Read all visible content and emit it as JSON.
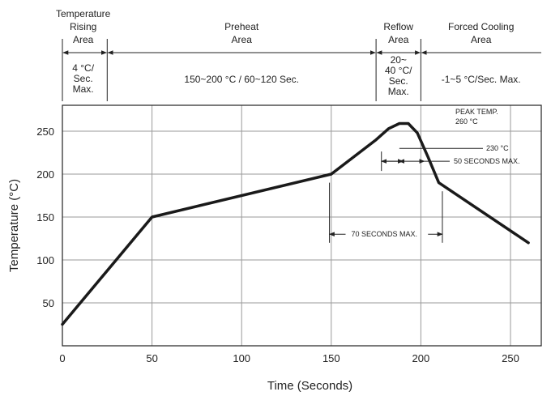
{
  "header": {
    "areas": [
      {
        "name_lines": [
          "Temperature",
          "Rising",
          "Area"
        ],
        "desc_lines": [
          "4 °C/",
          "Sec.",
          "Max."
        ]
      },
      {
        "name_lines": [
          "Preheat",
          "Area"
        ],
        "desc_lines": [
          "150~200 °C / 60~120 Sec."
        ]
      },
      {
        "name_lines": [
          "Reflow",
          "Area"
        ],
        "desc_lines": [
          "20~",
          "40 °C/",
          "Sec.",
          "Max."
        ]
      },
      {
        "name_lines": [
          "Forced Cooling",
          "Area"
        ],
        "desc_lines": [
          "-1~5 °C/Sec. Max."
        ]
      }
    ]
  },
  "chart_data": {
    "type": "line",
    "xlabel": "Time (Seconds)",
    "ylabel": "Temperature (°C)",
    "xlim": [
      0,
      265
    ],
    "ylim": [
      0,
      300
    ],
    "x_ticks": [
      0,
      50,
      100,
      150,
      200,
      250
    ],
    "y_ticks": [
      50,
      100,
      150,
      200,
      250
    ],
    "grid": true,
    "series": [
      {
        "x": [
          0,
          50,
          150,
          175,
          182,
          188,
          193,
          198,
          204,
          210,
          260
        ],
        "y": [
          25,
          150,
          200,
          240,
          253,
          259,
          259,
          248,
          220,
          190,
          120
        ]
      }
    ],
    "annotations": {
      "peak_lines": [
        "PEAK TEMP.",
        "260 °C"
      ],
      "t230_label": "230 °C",
      "sec50_label": "50 SECONDS MAX.",
      "sec70_label": "70 SECONDS MAX."
    }
  }
}
